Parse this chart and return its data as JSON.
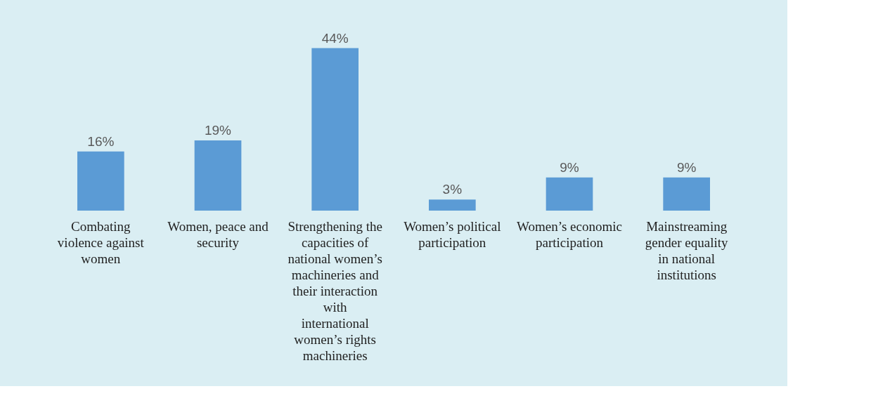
{
  "chart_data": {
    "type": "bar",
    "categories": [
      "Combating violence against women",
      "Women, peace and security",
      "Strengthening the capacities of national women’s machineries and their interaction with international women’s rights machineries",
      "Women’s political participation",
      "Women’s economic participation",
      "Mainstreaming gender equality in national institutions"
    ],
    "values": [
      16,
      19,
      44,
      3,
      9,
      9
    ],
    "value_labels": [
      "16%",
      "19%",
      "44%",
      "3%",
      "9%",
      "9%"
    ],
    "color": "#5b9bd5"
  }
}
